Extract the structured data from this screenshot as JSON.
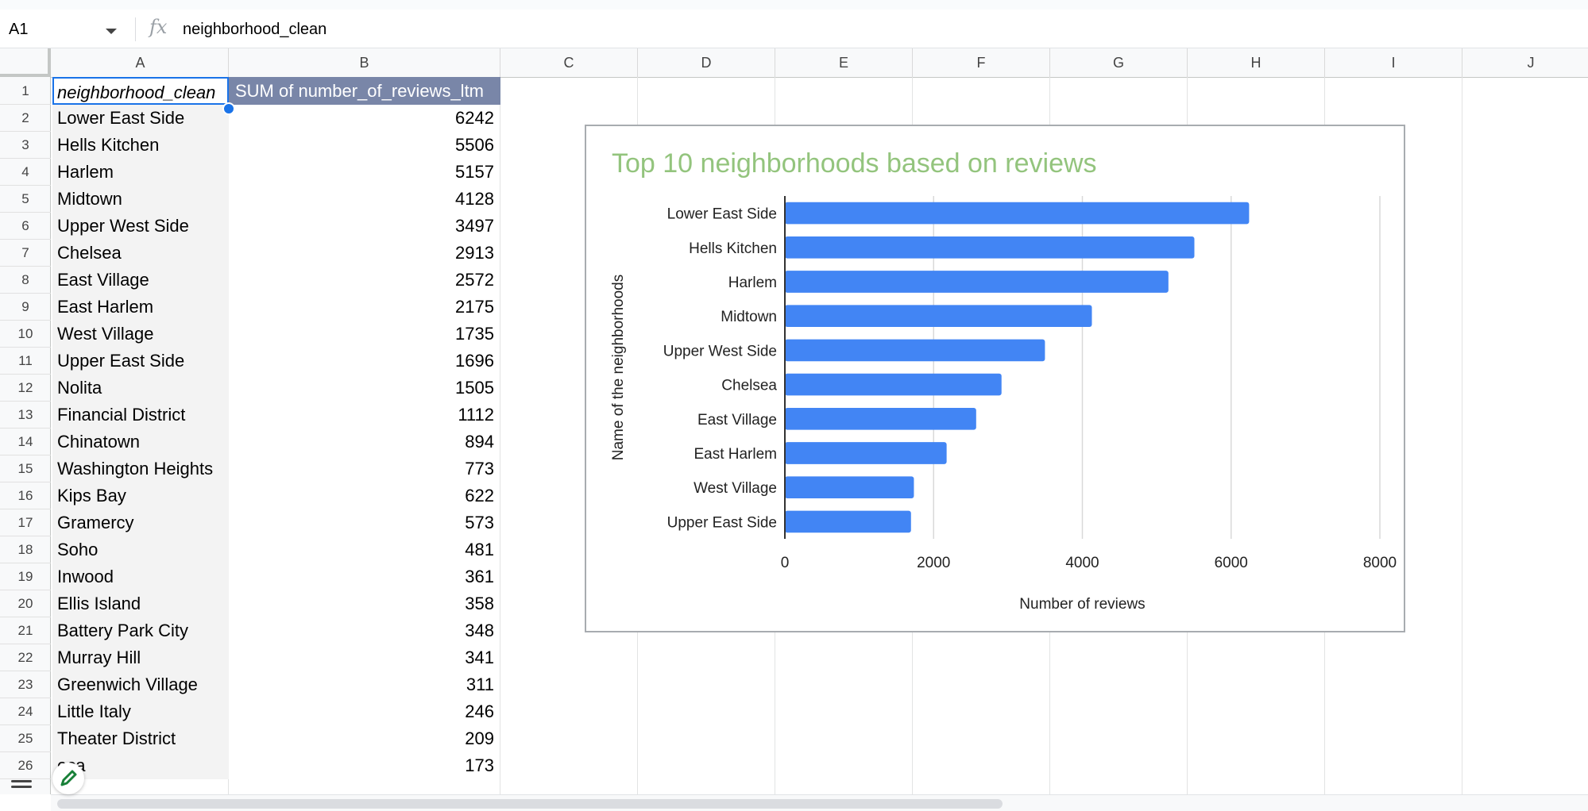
{
  "formula_bar": {
    "cell_ref": "A1",
    "fx_label": "fx",
    "value": "neighborhood_clean"
  },
  "columns": [
    "A",
    "B",
    "C",
    "D",
    "E",
    "F",
    "G",
    "H",
    "I",
    "J"
  ],
  "rows": [
    "1",
    "2",
    "3",
    "4",
    "5",
    "6",
    "7",
    "8",
    "9",
    "10",
    "11",
    "12",
    "13",
    "14",
    "15",
    "16",
    "17",
    "18",
    "19",
    "20",
    "21",
    "22",
    "23",
    "24",
    "25",
    "26"
  ],
  "table": {
    "header": [
      "neighborhood_clean",
      "SUM of number_of_reviews_ltm"
    ],
    "rows": [
      [
        "Lower East Side",
        "6242"
      ],
      [
        "Hells Kitchen",
        "5506"
      ],
      [
        "Harlem",
        "5157"
      ],
      [
        "Midtown",
        "4128"
      ],
      [
        "Upper West Side",
        "3497"
      ],
      [
        "Chelsea",
        "2913"
      ],
      [
        "East Village",
        "2572"
      ],
      [
        "East Harlem",
        "2175"
      ],
      [
        "West Village",
        "1735"
      ],
      [
        "Upper East Side",
        "1696"
      ],
      [
        "Nolita",
        "1505"
      ],
      [
        "Financial District",
        "1112"
      ],
      [
        "Chinatown",
        "894"
      ],
      [
        "Washington Heights",
        "773"
      ],
      [
        "Kips Bay",
        "622"
      ],
      [
        "Gramercy",
        "573"
      ],
      [
        "Soho",
        "481"
      ],
      [
        "Inwood",
        "361"
      ],
      [
        "Ellis Island",
        "358"
      ],
      [
        "Battery Park City",
        "348"
      ],
      [
        "Murray Hill",
        "341"
      ],
      [
        "Greenwich Village",
        "311"
      ],
      [
        "Little Italy",
        "246"
      ],
      [
        "Theater District",
        "209"
      ],
      [
        "eca",
        "173"
      ]
    ]
  },
  "chart_data": {
    "type": "bar",
    "orientation": "horizontal",
    "title": "Top 10 neighborhoods based on reviews",
    "xlabel": "Number of reviews",
    "ylabel": "Name of the neighborhoods",
    "categories": [
      "Lower East Side",
      "Hells Kitchen",
      "Harlem",
      "Midtown",
      "Upper West Side",
      "Chelsea",
      "East Village",
      "East Harlem",
      "West Village",
      "Upper East Side"
    ],
    "values": [
      6242,
      5506,
      5157,
      4128,
      3497,
      2913,
      2572,
      2175,
      1735,
      1696
    ],
    "xlim": [
      0,
      8000
    ],
    "xticks": [
      "0",
      "2000",
      "4000",
      "6000",
      "8000"
    ],
    "grid": true,
    "legend": "none",
    "colors": {
      "bar": "#4285f4",
      "title": "#93c47d",
      "grid": "#d9d9d9",
      "axis": "#333333"
    }
  },
  "icons": {
    "name_box_dropdown": "caret-down-icon",
    "fx": "function-icon",
    "edit": "pencil-icon",
    "sheets_menu": "menu-icon"
  }
}
